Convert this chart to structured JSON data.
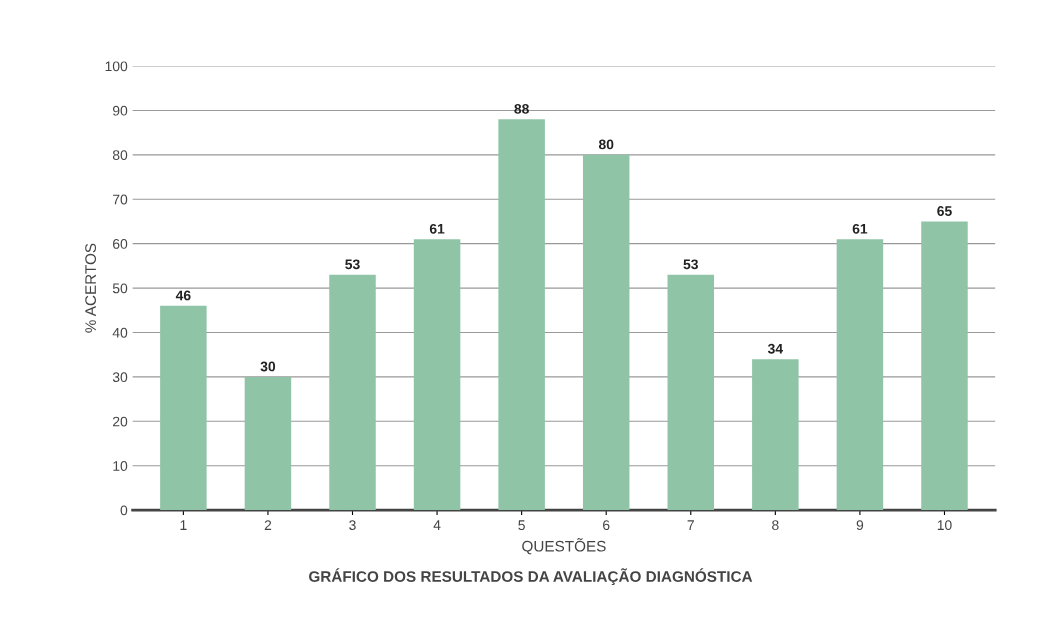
{
  "chart_data": {
    "type": "bar",
    "title": "GRÁFICO DOS RESULTADOS DA AVALIAÇÃO DIAGNÓSTICA",
    "xlabel": "QUESTÕES",
    "ylabel": "% ACERTOS",
    "categories": [
      "1",
      "2",
      "3",
      "4",
      "5",
      "6",
      "7",
      "8",
      "9",
      "10"
    ],
    "values": [
      46,
      30,
      53,
      61,
      88,
      80,
      53,
      34,
      61,
      65
    ],
    "color": "#8fc4a7",
    "ylim": [
      0,
      100
    ],
    "yticks": [
      0,
      10,
      20,
      30,
      40,
      50,
      60,
      70,
      80,
      90,
      100
    ],
    "grid": "y",
    "data_labels": true
  }
}
